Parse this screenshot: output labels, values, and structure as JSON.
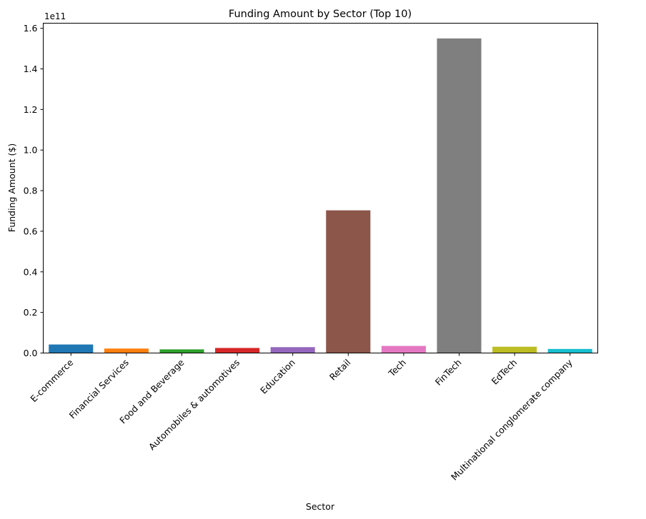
{
  "chart_data": {
    "type": "bar",
    "title": "Funding Amount by Sector (Top 10)",
    "xlabel": "Sector",
    "ylabel": "Funding Amount ($)",
    "y_offset_label": "1e11",
    "categories": [
      "E-commerce",
      "Financial Services",
      "Food and Beverage",
      "Automobiles & automotives",
      "Education",
      "Retail",
      "Tech",
      "FinTech",
      "EdTech",
      "Multinational conglomerate company"
    ],
    "values": [
      4200000000.0,
      2200000000.0,
      1800000000.0,
      2500000000.0,
      2900000000.0,
      70300000000.0,
      3500000000.0,
      155000000000.0,
      3100000000.0,
      2000000000.0
    ],
    "colors": [
      "#1f77b4",
      "#ff7f0e",
      "#2ca02c",
      "#d62728",
      "#9467bd",
      "#8c564b",
      "#e377c2",
      "#7f7f7f",
      "#bcbd22",
      "#17becf"
    ],
    "yticks": [
      0,
      20000000000.0,
      40000000000.0,
      60000000000.0,
      80000000000.0,
      100000000000.0,
      120000000000.0,
      140000000000.0,
      160000000000.0
    ],
    "ytick_labels": [
      "0.0",
      "0.2",
      "0.4",
      "0.6",
      "0.8",
      "1.0",
      "1.2",
      "1.4",
      "1.6"
    ],
    "ylim": [
      0,
      162500000000.0
    ],
    "grid": false,
    "legend": "none"
  }
}
